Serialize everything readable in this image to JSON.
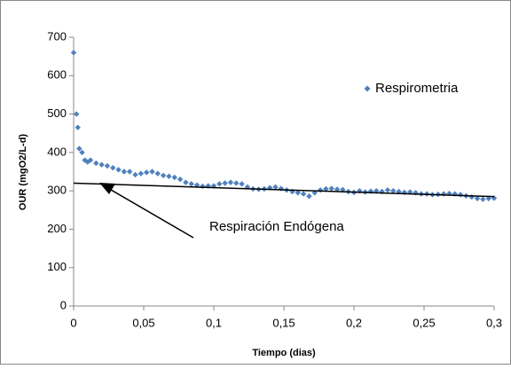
{
  "chart_data": {
    "type": "scatter",
    "xlabel": "Tiempo (dias)",
    "ylabel": "OUR (mgO2/L-d)",
    "xlim": [
      0,
      0.3
    ],
    "ylim": [
      0,
      700
    ],
    "xticks": [
      0,
      {
        "value": 0.05,
        "label": "0,05"
      },
      {
        "value": 0.1,
        "label": "0,1"
      },
      {
        "value": 0.15,
        "label": "0,15"
      },
      {
        "value": 0.2,
        "label": "0,2"
      },
      {
        "value": 0.25,
        "label": "0,25"
      },
      {
        "value": 0.3,
        "label": "0,3"
      }
    ],
    "yticks": [
      0,
      100,
      200,
      300,
      400,
      500,
      600,
      700
    ],
    "grid": false,
    "legend": "upper right",
    "series": [
      {
        "name": "Respirometria",
        "color": "#4f81bd",
        "x": [
          0,
          0.002,
          0.003,
          0.004,
          0.006,
          0.008,
          0.01,
          0.012,
          0.016,
          0.02,
          0.024,
          0.028,
          0.032,
          0.036,
          0.04,
          0.044,
          0.048,
          0.052,
          0.056,
          0.06,
          0.064,
          0.068,
          0.072,
          0.076,
          0.08,
          0.084,
          0.088,
          0.092,
          0.096,
          0.1,
          0.104,
          0.108,
          0.112,
          0.116,
          0.12,
          0.124,
          0.128,
          0.132,
          0.136,
          0.14,
          0.144,
          0.148,
          0.152,
          0.156,
          0.16,
          0.164,
          0.168,
          0.172,
          0.176,
          0.18,
          0.184,
          0.188,
          0.192,
          0.196,
          0.2,
          0.204,
          0.208,
          0.212,
          0.216,
          0.22,
          0.224,
          0.228,
          0.232,
          0.236,
          0.24,
          0.244,
          0.248,
          0.252,
          0.256,
          0.26,
          0.264,
          0.268,
          0.272,
          0.276,
          0.28,
          0.284,
          0.288,
          0.292,
          0.296,
          0.3
        ],
        "values": [
          660,
          500,
          465,
          410,
          400,
          380,
          375,
          380,
          372,
          368,
          365,
          360,
          355,
          350,
          350,
          342,
          345,
          348,
          350,
          345,
          340,
          338,
          335,
          330,
          322,
          318,
          315,
          312,
          313,
          313,
          318,
          320,
          322,
          320,
          318,
          310,
          305,
          304,
          305,
          308,
          310,
          306,
          302,
          298,
          295,
          292,
          286,
          295,
          302,
          305,
          306,
          304,
          303,
          298,
          296,
          300,
          297,
          299,
          300,
          298,
          302,
          300,
          298,
          296,
          297,
          295,
          292,
          292,
          290,
          291,
          292,
          293,
          292,
          290,
          287,
          284,
          280,
          278,
          280,
          281
        ]
      }
    ],
    "trendline": {
      "color": "#000000",
      "x": [
        0,
        0.3
      ],
      "values": [
        320,
        285
      ]
    },
    "annotation": "Respiración Endógena"
  }
}
